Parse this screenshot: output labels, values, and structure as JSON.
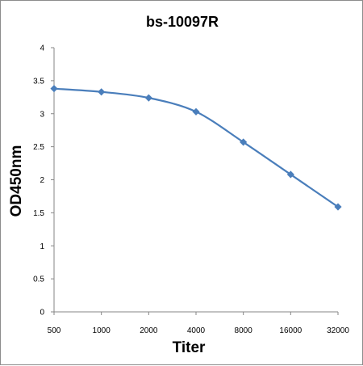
{
  "chart_data": {
    "type": "line",
    "title": "bs-10097R",
    "xlabel": "Titer",
    "ylabel": "OD450nm",
    "categories": [
      "500",
      "1000",
      "2000",
      "4000",
      "8000",
      "16000",
      "32000"
    ],
    "series": [
      {
        "values": [
          3.38,
          3.33,
          3.24,
          3.03,
          2.57,
          2.08,
          1.59
        ]
      }
    ],
    "ylim": [
      0,
      4
    ],
    "yticks": [
      "0",
      "0.5",
      "1",
      "1.5",
      "2",
      "2.5",
      "3",
      "3.5",
      "4"
    ],
    "grid": false,
    "legend": "none",
    "series_color": "#4a7ebb",
    "marker": "diamond"
  }
}
